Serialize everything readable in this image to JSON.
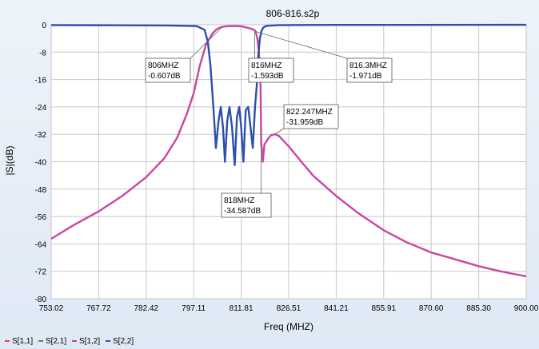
{
  "chart_data": {
    "type": "line",
    "title": "806-816.s2p",
    "xlabel": "Freq (MHZ)",
    "ylabel": "|S|(dB)",
    "xlim": [
      753.02,
      900.0
    ],
    "ylim": [
      -80,
      0
    ],
    "x_ticks": [
      "753.02",
      "767.72",
      "782.42",
      "797.11",
      "811.81",
      "826.51",
      "841.21",
      "855.91",
      "870.60",
      "885.30",
      "900.00"
    ],
    "y_ticks": [
      "0",
      "-8",
      "-16",
      "-24",
      "-32",
      "-40",
      "-48",
      "-56",
      "-64",
      "-72",
      "-80"
    ],
    "grid": true,
    "legend_position": "bottom-left",
    "legend": [
      {
        "name": "S[1,1]",
        "color": "#e8433f"
      },
      {
        "name": "S[2,1]",
        "color": "#3a9a3a"
      },
      {
        "name": "S[1,2]",
        "color": "#d0399f"
      },
      {
        "name": "S[2,2]",
        "color": "#2c4fae"
      }
    ],
    "series": [
      {
        "name": "S[1,2]",
        "color": "#c9469f",
        "x": [
          753.02,
          760,
          767.72,
          775,
          782.42,
          788,
          792,
          795,
          797.11,
          799,
          801,
          803,
          804,
          805,
          806,
          808,
          810,
          812,
          814,
          815,
          816,
          816.3,
          816.8,
          817.3,
          817.8,
          818,
          818.5,
          819,
          820,
          821,
          822.247,
          823.5,
          826.51,
          830,
          834,
          841.21,
          848,
          855.91,
          863,
          870.6,
          878,
          885.3,
          892,
          900.0
        ],
        "y": [
          -62.5,
          -58.5,
          -54.5,
          -50,
          -44.5,
          -39,
          -33,
          -26,
          -20,
          -12,
          -5.5,
          -2.5,
          -1.5,
          -0.9,
          -0.6,
          -0.4,
          -0.35,
          -0.5,
          -0.9,
          -1.2,
          -1.6,
          -2.0,
          -4,
          -8,
          -18,
          -34.6,
          -40,
          -35,
          -33.5,
          -32.3,
          -31.96,
          -32.5,
          -35.5,
          -39.5,
          -44,
          -50,
          -55,
          -60,
          -63.5,
          -66.5,
          -68.5,
          -70.5,
          -72,
          -73.5
        ]
      },
      {
        "name": "S[2,2]",
        "color": "#2c4fae",
        "x": [
          753.02,
          790,
          798,
          800.5,
          801.5,
          802.3,
          803.2,
          804,
          804.8,
          805.5,
          806.2,
          806.8,
          807.5,
          808.2,
          809,
          809.8,
          810.5,
          811.2,
          811.8,
          812.5,
          813.2,
          814,
          814.7,
          815.4,
          816.1,
          816.6,
          817.1,
          817.6,
          818.1,
          818.6,
          819.2,
          820,
          821.5,
          823,
          826,
          840,
          900.0
        ],
        "y": [
          -0.1,
          -0.2,
          -0.4,
          -1.5,
          -5,
          -12,
          -24,
          -36,
          -28,
          -24,
          -30,
          -40,
          -28,
          -24,
          -30,
          -41,
          -27,
          -24,
          -30,
          -40,
          -25,
          -24,
          -30,
          -36,
          -24,
          -18,
          -9,
          -4,
          -1.8,
          -0.9,
          -0.5,
          -0.3,
          -0.2,
          -0.15,
          -0.1,
          -0.05,
          -0.02
        ]
      }
    ],
    "annotations": [
      {
        "lines": [
          "806MHZ",
          "-0.607dB"
        ],
        "x": 806,
        "y": -0.607
      },
      {
        "lines": [
          "816MHZ",
          "-1.593dB"
        ],
        "x": 816,
        "y": -1.593
      },
      {
        "lines": [
          "816.3MHZ",
          "-1.971dB"
        ],
        "x": 816.3,
        "y": -1.971
      },
      {
        "lines": [
          "822.247MHZ",
          "-31.959dB"
        ],
        "x": 822.247,
        "y": -31.959
      },
      {
        "lines": [
          "818MHZ",
          "-34.587dB"
        ],
        "x": 818,
        "y": -34.587
      }
    ]
  }
}
